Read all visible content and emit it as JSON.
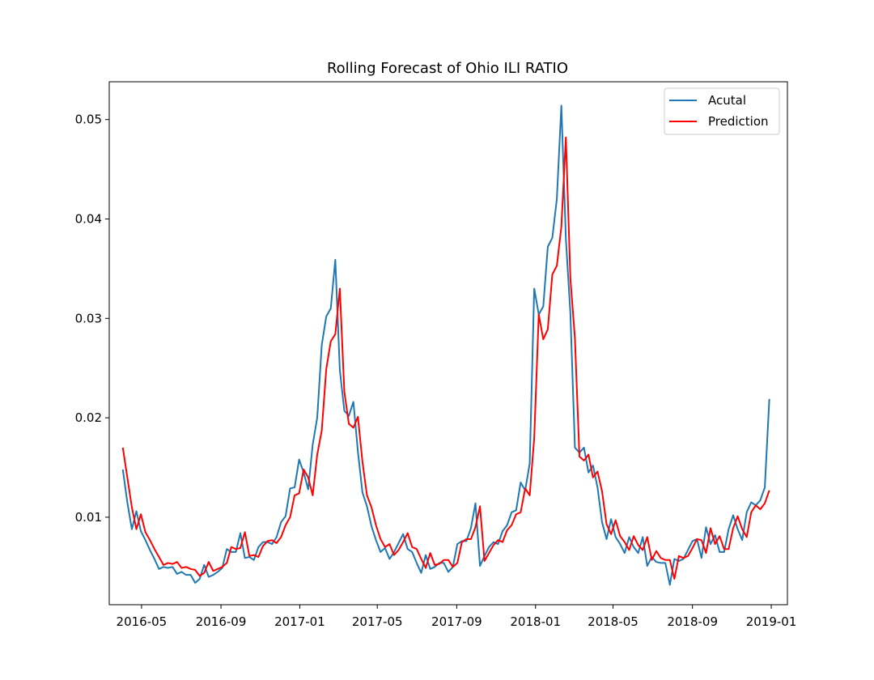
{
  "chart_data": {
    "type": "line",
    "title": "Rolling Forecast of Ohio ILI RATIO",
    "xlabel": "",
    "ylabel": "",
    "x_axis": {
      "type": "date",
      "range": [
        "2016-03-12",
        "2019-01-26"
      ],
      "ticks": [
        "2016-05-01",
        "2016-09-01",
        "2017-01-01",
        "2017-05-01",
        "2017-09-01",
        "2018-01-01",
        "2018-05-01",
        "2018-09-01",
        "2019-01-01"
      ],
      "tick_labels": [
        "2016-05",
        "2016-09",
        "2017-01",
        "2017-05",
        "2017-09",
        "2018-01",
        "2018-05",
        "2018-09",
        "2019-01"
      ]
    },
    "y_axis": {
      "range": [
        0.0012,
        0.0538
      ],
      "ticks": [
        0.01,
        0.02,
        0.03,
        0.04,
        0.05
      ],
      "tick_labels": [
        "0.01",
        "0.02",
        "0.03",
        "0.04",
        "0.05"
      ]
    },
    "grid": false,
    "legend_position": "top-right",
    "series": [
      {
        "name": "Acutal",
        "color": "#1f77b4",
        "x": [
          "2016-04-02",
          "2016-04-09",
          "2016-04-16",
          "2016-04-23",
          "2016-04-30",
          "2016-05-07",
          "2016-05-14",
          "2016-05-21",
          "2016-05-28",
          "2016-06-04",
          "2016-06-11",
          "2016-06-18",
          "2016-06-25",
          "2016-07-02",
          "2016-07-09",
          "2016-07-16",
          "2016-07-23",
          "2016-07-30",
          "2016-08-06",
          "2016-08-13",
          "2016-08-20",
          "2016-08-27",
          "2016-09-03",
          "2016-09-10",
          "2016-09-17",
          "2016-09-24",
          "2016-10-01",
          "2016-10-08",
          "2016-10-15",
          "2016-10-22",
          "2016-10-29",
          "2016-11-05",
          "2016-11-12",
          "2016-11-19",
          "2016-11-26",
          "2016-12-03",
          "2016-12-10",
          "2016-12-17",
          "2016-12-24",
          "2016-12-31",
          "2017-01-07",
          "2017-01-14",
          "2017-01-21",
          "2017-01-28",
          "2017-02-04",
          "2017-02-11",
          "2017-02-18",
          "2017-02-25",
          "2017-03-04",
          "2017-03-11",
          "2017-03-18",
          "2017-03-25",
          "2017-04-01",
          "2017-04-08",
          "2017-04-15",
          "2017-04-22",
          "2017-04-29",
          "2017-05-06",
          "2017-05-13",
          "2017-05-20",
          "2017-05-27",
          "2017-06-03",
          "2017-06-10",
          "2017-06-17",
          "2017-06-24",
          "2017-07-01",
          "2017-07-08",
          "2017-07-15",
          "2017-07-22",
          "2017-07-29",
          "2017-08-05",
          "2017-08-12",
          "2017-08-19",
          "2017-08-26",
          "2017-09-02",
          "2017-09-09",
          "2017-09-16",
          "2017-09-23",
          "2017-09-30",
          "2017-10-07",
          "2017-10-14",
          "2017-10-21",
          "2017-10-28",
          "2017-11-04",
          "2017-11-11",
          "2017-11-18",
          "2017-11-25",
          "2017-12-02",
          "2017-12-09",
          "2017-12-16",
          "2017-12-23",
          "2017-12-30",
          "2018-01-06",
          "2018-01-13",
          "2018-01-20",
          "2018-01-27",
          "2018-02-03",
          "2018-02-10",
          "2018-02-17",
          "2018-02-24",
          "2018-03-03",
          "2018-03-10",
          "2018-03-17",
          "2018-03-24",
          "2018-03-31",
          "2018-04-07",
          "2018-04-14",
          "2018-04-21",
          "2018-04-28",
          "2018-05-05",
          "2018-05-12",
          "2018-05-19",
          "2018-05-26",
          "2018-06-02",
          "2018-06-09",
          "2018-06-16",
          "2018-06-23",
          "2018-06-30",
          "2018-07-07",
          "2018-07-14",
          "2018-07-21",
          "2018-07-28",
          "2018-08-04",
          "2018-08-11",
          "2018-08-18",
          "2018-08-25",
          "2018-09-01",
          "2018-09-08",
          "2018-09-15",
          "2018-09-22",
          "2018-09-29",
          "2018-10-06",
          "2018-10-13",
          "2018-10-20",
          "2018-10-27",
          "2018-11-03",
          "2018-11-10",
          "2018-11-17",
          "2018-11-24",
          "2018-12-01",
          "2018-12-08",
          "2018-12-15",
          "2018-12-22",
          "2018-12-29"
        ],
        "y": [
          0.0148,
          0.0115,
          0.0088,
          0.0106,
          0.0086,
          0.0077,
          0.0067,
          0.0058,
          0.0048,
          0.005,
          0.0049,
          0.005,
          0.0043,
          0.0045,
          0.0042,
          0.0042,
          0.0034,
          0.0038,
          0.0052,
          0.004,
          0.0042,
          0.0045,
          0.0049,
          0.0068,
          0.0065,
          0.0065,
          0.0084,
          0.0059,
          0.006,
          0.0057,
          0.007,
          0.0075,
          0.0075,
          0.0073,
          0.008,
          0.0095,
          0.0101,
          0.0129,
          0.013,
          0.0158,
          0.0145,
          0.0128,
          0.0173,
          0.02,
          0.0273,
          0.0302,
          0.031,
          0.0359,
          0.0248,
          0.0207,
          0.0202,
          0.0216,
          0.0166,
          0.0125,
          0.0111,
          0.0091,
          0.0077,
          0.0065,
          0.0069,
          0.0058,
          0.0065,
          0.0074,
          0.0083,
          0.0068,
          0.0065,
          0.0054,
          0.0044,
          0.0062,
          0.0048,
          0.005,
          0.0054,
          0.0054,
          0.0045,
          0.005,
          0.0073,
          0.0076,
          0.0076,
          0.0089,
          0.0114,
          0.0051,
          0.0061,
          0.007,
          0.0075,
          0.0073,
          0.0086,
          0.0092,
          0.0105,
          0.0107,
          0.0135,
          0.0127,
          0.0154,
          0.033,
          0.0304,
          0.0312,
          0.0372,
          0.0381,
          0.042,
          0.0514,
          0.038,
          0.0305,
          0.017,
          0.0165,
          0.017,
          0.0145,
          0.0152,
          0.013,
          0.0095,
          0.0078,
          0.0098,
          0.008,
          0.0073,
          0.0064,
          0.008,
          0.007,
          0.0064,
          0.008,
          0.0051,
          0.006,
          0.0055,
          0.0054,
          0.0054,
          0.0032,
          0.0058,
          0.0056,
          0.0058,
          0.0067,
          0.0076,
          0.0078,
          0.0059,
          0.009,
          0.0073,
          0.0082,
          0.0065,
          0.0065,
          0.0088,
          0.0102,
          0.0088,
          0.0077,
          0.0105,
          0.0115,
          0.0112,
          0.0117,
          0.013,
          0.0219
        ]
      },
      {
        "name": "Prediction",
        "color": "#ff0000",
        "x": [
          "2016-04-02",
          "2016-04-09",
          "2016-04-16",
          "2016-04-23",
          "2016-04-30",
          "2016-05-07",
          "2016-05-14",
          "2016-05-21",
          "2016-05-28",
          "2016-06-04",
          "2016-06-11",
          "2016-06-18",
          "2016-06-25",
          "2016-07-02",
          "2016-07-09",
          "2016-07-16",
          "2016-07-23",
          "2016-07-30",
          "2016-08-06",
          "2016-08-13",
          "2016-08-20",
          "2016-08-27",
          "2016-09-03",
          "2016-09-10",
          "2016-09-17",
          "2016-09-24",
          "2016-10-01",
          "2016-10-08",
          "2016-10-15",
          "2016-10-22",
          "2016-10-29",
          "2016-11-05",
          "2016-11-12",
          "2016-11-19",
          "2016-11-26",
          "2016-12-03",
          "2016-12-10",
          "2016-12-17",
          "2016-12-24",
          "2016-12-31",
          "2017-01-07",
          "2017-01-14",
          "2017-01-21",
          "2017-01-28",
          "2017-02-04",
          "2017-02-11",
          "2017-02-18",
          "2017-02-25",
          "2017-03-04",
          "2017-03-11",
          "2017-03-18",
          "2017-03-25",
          "2017-04-01",
          "2017-04-08",
          "2017-04-15",
          "2017-04-22",
          "2017-04-29",
          "2017-05-06",
          "2017-05-13",
          "2017-05-20",
          "2017-05-27",
          "2017-06-03",
          "2017-06-10",
          "2017-06-17",
          "2017-06-24",
          "2017-07-01",
          "2017-07-08",
          "2017-07-15",
          "2017-07-22",
          "2017-07-29",
          "2017-08-05",
          "2017-08-12",
          "2017-08-19",
          "2017-08-26",
          "2017-09-02",
          "2017-09-09",
          "2017-09-16",
          "2017-09-23",
          "2017-09-30",
          "2017-10-07",
          "2017-10-14",
          "2017-10-21",
          "2017-10-28",
          "2017-11-04",
          "2017-11-11",
          "2017-11-18",
          "2017-11-25",
          "2017-12-02",
          "2017-12-09",
          "2017-12-16",
          "2017-12-23",
          "2017-12-30",
          "2018-01-06",
          "2018-01-13",
          "2018-01-20",
          "2018-01-27",
          "2018-02-03",
          "2018-02-10",
          "2018-02-17",
          "2018-02-24",
          "2018-03-03",
          "2018-03-10",
          "2018-03-17",
          "2018-03-24",
          "2018-03-31",
          "2018-04-07",
          "2018-04-14",
          "2018-04-21",
          "2018-04-28",
          "2018-05-05",
          "2018-05-12",
          "2018-05-19",
          "2018-05-26",
          "2018-06-02",
          "2018-06-09",
          "2018-06-16",
          "2018-06-23",
          "2018-06-30",
          "2018-07-07",
          "2018-07-14",
          "2018-07-21",
          "2018-07-28",
          "2018-08-04",
          "2018-08-11",
          "2018-08-18",
          "2018-08-25",
          "2018-09-01",
          "2018-09-08",
          "2018-09-15",
          "2018-09-22",
          "2018-09-29",
          "2018-10-06",
          "2018-10-13",
          "2018-10-20",
          "2018-10-27",
          "2018-11-03",
          "2018-11-10",
          "2018-11-17",
          "2018-11-24",
          "2018-12-01",
          "2018-12-08",
          "2018-12-15",
          "2018-12-22",
          "2018-12-29"
        ],
        "y": [
          0.017,
          0.014,
          0.011,
          0.0088,
          0.0103,
          0.0085,
          0.0077,
          0.0068,
          0.006,
          0.0052,
          0.0054,
          0.0053,
          0.0055,
          0.0049,
          0.005,
          0.0048,
          0.0047,
          0.0041,
          0.0044,
          0.0055,
          0.0046,
          0.0048,
          0.005,
          0.0054,
          0.007,
          0.0068,
          0.0069,
          0.0085,
          0.0061,
          0.0062,
          0.006,
          0.0071,
          0.0076,
          0.0077,
          0.0074,
          0.008,
          0.0092,
          0.01,
          0.0122,
          0.0124,
          0.0148,
          0.014,
          0.0122,
          0.0163,
          0.0187,
          0.0249,
          0.0277,
          0.0284,
          0.033,
          0.0226,
          0.0194,
          0.019,
          0.0201,
          0.0156,
          0.0122,
          0.011,
          0.0092,
          0.0078,
          0.007,
          0.0073,
          0.0062,
          0.0067,
          0.0075,
          0.0084,
          0.007,
          0.0068,
          0.0058,
          0.0049,
          0.0064,
          0.0052,
          0.0053,
          0.0057,
          0.0057,
          0.005,
          0.0054,
          0.0075,
          0.0078,
          0.0078,
          0.009,
          0.0111,
          0.0056,
          0.0064,
          0.0072,
          0.0077,
          0.0075,
          0.0087,
          0.0092,
          0.0103,
          0.0105,
          0.0129,
          0.0122,
          0.018,
          0.0304,
          0.0279,
          0.0289,
          0.0344,
          0.0353,
          0.0392,
          0.0482,
          0.034,
          0.028,
          0.0161,
          0.0157,
          0.0163,
          0.014,
          0.0146,
          0.0126,
          0.0093,
          0.0083,
          0.0097,
          0.0081,
          0.0075,
          0.0067,
          0.0081,
          0.0072,
          0.0067,
          0.008,
          0.0057,
          0.0066,
          0.0059,
          0.0057,
          0.0057,
          0.0038,
          0.0061,
          0.0059,
          0.0061,
          0.0069,
          0.0078,
          0.0077,
          0.0064,
          0.0089,
          0.0073,
          0.0081,
          0.0068,
          0.0068,
          0.0089,
          0.0101,
          0.0088,
          0.008,
          0.0105,
          0.0112,
          0.0108,
          0.0114,
          0.0127
        ]
      }
    ]
  }
}
